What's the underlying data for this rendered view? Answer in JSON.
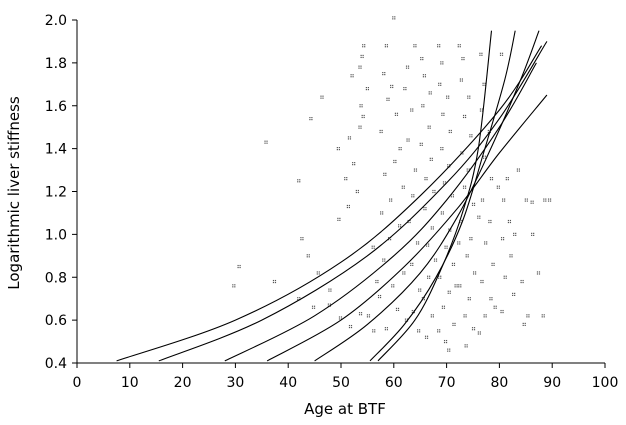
{
  "chart_data": {
    "type": "scatter",
    "xlabel": "Age at BTF",
    "ylabel": "Logarithmic liver stiffness",
    "xlim": [
      0,
      100
    ],
    "ylim": [
      0.4,
      2.0
    ],
    "xticks": [
      "0",
      "10",
      "20",
      "30",
      "40",
      "50",
      "60",
      "70",
      "80",
      "90",
      "100"
    ],
    "yticks": [
      "0.4",
      "0.6",
      "0.8",
      "1.0",
      "1.2",
      "1.4",
      "1.6",
      "1.8",
      "2.0"
    ],
    "grid": false,
    "legend": "none",
    "curves": [
      {
        "points": [
          [
            7.5,
            0.41
          ],
          [
            30,
            0.6
          ],
          [
            50,
            0.87
          ],
          [
            65,
            1.18
          ],
          [
            80,
            1.58
          ],
          [
            88,
            1.88
          ]
        ]
      },
      {
        "points": [
          [
            15.5,
            0.41
          ],
          [
            35,
            0.6
          ],
          [
            55,
            0.9
          ],
          [
            70,
            1.24
          ],
          [
            80,
            1.54
          ],
          [
            89,
            1.9
          ]
        ]
      },
      {
        "points": [
          [
            28,
            0.41
          ],
          [
            45,
            0.62
          ],
          [
            60,
            0.9
          ],
          [
            70,
            1.16
          ],
          [
            80,
            1.5
          ],
          [
            87,
            1.8
          ]
        ]
      },
      {
        "points": [
          [
            36,
            0.41
          ],
          [
            50,
            0.6
          ],
          [
            62,
            0.85
          ],
          [
            72,
            1.12
          ],
          [
            80,
            1.38
          ],
          [
            89,
            1.65
          ]
        ]
      },
      {
        "points": [
          [
            45,
            0.41
          ],
          [
            55,
            0.58
          ],
          [
            65,
            0.82
          ],
          [
            72,
            1.08
          ],
          [
            78,
            1.38
          ],
          [
            84,
            1.72
          ],
          [
            87.5,
            1.95
          ]
        ]
      },
      {
        "points": [
          [
            55.5,
            0.41
          ],
          [
            62,
            0.58
          ],
          [
            68,
            0.8
          ],
          [
            73,
            1.06
          ],
          [
            77,
            1.38
          ],
          [
            81,
            1.72
          ],
          [
            83,
            1.95
          ]
        ]
      },
      {
        "points": [
          [
            57,
            0.41
          ],
          [
            64,
            0.6
          ],
          [
            69,
            0.84
          ],
          [
            73,
            1.1
          ],
          [
            76,
            1.4
          ],
          [
            78.5,
            1.95
          ]
        ]
      }
    ],
    "points": [
      [
        60,
        2.01
      ],
      [
        30.7,
        0.85
      ],
      [
        29.7,
        0.76
      ],
      [
        35.8,
        1.43
      ],
      [
        42,
        1.25
      ],
      [
        37.4,
        0.78
      ],
      [
        54.3,
        1.88
      ],
      [
        54,
        1.83
      ],
      [
        53.6,
        1.78
      ],
      [
        52.1,
        1.74
      ],
      [
        55,
        1.68
      ],
      [
        53.8,
        1.6
      ],
      [
        54.2,
        1.55
      ],
      [
        53.6,
        1.5
      ],
      [
        51.6,
        1.45
      ],
      [
        49.5,
        1.4
      ],
      [
        52.4,
        1.33
      ],
      [
        50.9,
        1.26
      ],
      [
        53.1,
        1.2
      ],
      [
        51.4,
        1.13
      ],
      [
        49.6,
        1.07
      ],
      [
        44.3,
        1.54
      ],
      [
        46.4,
        1.64
      ],
      [
        42.6,
        0.98
      ],
      [
        43.8,
        0.9
      ],
      [
        45.7,
        0.82
      ],
      [
        47.9,
        0.74
      ],
      [
        42,
        0.7
      ],
      [
        44.8,
        0.66
      ],
      [
        49.9,
        0.61
      ],
      [
        51.8,
        0.57
      ],
      [
        56.2,
        0.55
      ],
      [
        53.7,
        0.63
      ],
      [
        47.8,
        0.67
      ],
      [
        58.6,
        1.88
      ],
      [
        58.1,
        1.75
      ],
      [
        59.6,
        1.69
      ],
      [
        58.9,
        1.63
      ],
      [
        60.5,
        1.56
      ],
      [
        57.6,
        1.48
      ],
      [
        61.2,
        1.4
      ],
      [
        60.2,
        1.34
      ],
      [
        58.3,
        1.28
      ],
      [
        61.8,
        1.22
      ],
      [
        59.4,
        1.16
      ],
      [
        57.7,
        1.1
      ],
      [
        61.1,
        1.04
      ],
      [
        59.2,
        0.98
      ],
      [
        56.1,
        0.94
      ],
      [
        58.1,
        0.88
      ],
      [
        61.9,
        0.82
      ],
      [
        59.8,
        0.76
      ],
      [
        57.3,
        0.71
      ],
      [
        60.7,
        0.65
      ],
      [
        62.4,
        0.6
      ],
      [
        58.6,
        0.56
      ],
      [
        55.2,
        0.62
      ],
      [
        56.8,
        0.78
      ],
      [
        62.6,
        1.78
      ],
      [
        62.1,
        1.68
      ],
      [
        63.4,
        1.58
      ],
      [
        62.7,
        1.44
      ],
      [
        64.1,
        1.3
      ],
      [
        63.6,
        1.18
      ],
      [
        62.9,
        1.06
      ],
      [
        64.5,
        0.96
      ],
      [
        63.4,
        0.86
      ],
      [
        64.9,
        0.74
      ],
      [
        63.7,
        0.64
      ],
      [
        64.7,
        0.55
      ],
      [
        64,
        1.88
      ],
      [
        65.3,
        1.82
      ],
      [
        65.8,
        1.74
      ],
      [
        66.9,
        1.66
      ],
      [
        65.5,
        1.6
      ],
      [
        66.7,
        1.5
      ],
      [
        65.2,
        1.42
      ],
      [
        67.1,
        1.35
      ],
      [
        66.1,
        1.26
      ],
      [
        67.6,
        1.2
      ],
      [
        65.9,
        1.12
      ],
      [
        67.3,
        1.03
      ],
      [
        66.4,
        0.95
      ],
      [
        67.9,
        0.88
      ],
      [
        66.6,
        0.8
      ],
      [
        65.6,
        0.7
      ],
      [
        67.3,
        0.62
      ],
      [
        66.2,
        0.52
      ],
      [
        68.5,
        1.88
      ],
      [
        69.1,
        1.8
      ],
      [
        68.7,
        1.7
      ],
      [
        70.2,
        1.64
      ],
      [
        69.3,
        1.56
      ],
      [
        70.7,
        1.48
      ],
      [
        69.1,
        1.4
      ],
      [
        70.4,
        1.32
      ],
      [
        69.6,
        1.24
      ],
      [
        71.1,
        1.18
      ],
      [
        69.2,
        1.1
      ],
      [
        70.6,
        1.02
      ],
      [
        69.9,
        0.94
      ],
      [
        71.3,
        0.86
      ],
      [
        68.7,
        0.8
      ],
      [
        70.5,
        0.73
      ],
      [
        69.4,
        0.66
      ],
      [
        71.4,
        0.58
      ],
      [
        69.8,
        0.5
      ],
      [
        70.4,
        0.46
      ],
      [
        68.5,
        0.55
      ],
      [
        71.8,
        0.76
      ],
      [
        72.4,
        1.88
      ],
      [
        73.1,
        1.82
      ],
      [
        72.8,
        1.72
      ],
      [
        74.2,
        1.64
      ],
      [
        73.4,
        1.55
      ],
      [
        74.6,
        1.46
      ],
      [
        72.9,
        1.38
      ],
      [
        74.1,
        1.3
      ],
      [
        73.4,
        1.22
      ],
      [
        75.1,
        1.14
      ],
      [
        72.7,
        1.06
      ],
      [
        74.6,
        0.98
      ],
      [
        73.9,
        0.9
      ],
      [
        75.3,
        0.82
      ],
      [
        72.5,
        0.76
      ],
      [
        74.3,
        0.7
      ],
      [
        73.5,
        0.62
      ],
      [
        75.1,
        0.56
      ],
      [
        73.7,
        0.48
      ],
      [
        72.3,
        0.96
      ],
      [
        76.1,
        1.08
      ],
      [
        76.5,
        1.84
      ],
      [
        77.1,
        1.7
      ],
      [
        76.6,
        1.58
      ],
      [
        78.1,
        1.48
      ],
      [
        77.2,
        1.36
      ],
      [
        78.5,
        1.26
      ],
      [
        76.8,
        1.16
      ],
      [
        78.2,
        1.06
      ],
      [
        77.4,
        0.96
      ],
      [
        78.8,
        0.86
      ],
      [
        76.7,
        0.78
      ],
      [
        78.4,
        0.7
      ],
      [
        77.3,
        0.62
      ],
      [
        76.2,
        0.54
      ],
      [
        79.2,
        0.66
      ],
      [
        80.4,
        1.84
      ],
      [
        81.5,
        1.26
      ],
      [
        80.8,
        1.16
      ],
      [
        81.9,
        1.06
      ],
      [
        80.6,
        0.98
      ],
      [
        82.2,
        0.9
      ],
      [
        81.1,
        0.8
      ],
      [
        82.7,
        0.72
      ],
      [
        80.5,
        0.64
      ],
      [
        79.8,
        1.22
      ],
      [
        82.9,
        1.0
      ],
      [
        85.1,
        1.16
      ],
      [
        86.2,
        1.15
      ],
      [
        85.4,
        0.62
      ],
      [
        88.3,
        0.62
      ],
      [
        88.6,
        1.16
      ],
      [
        87.4,
        0.82
      ],
      [
        89.5,
        1.16
      ],
      [
        84.3,
        0.78
      ],
      [
        84.7,
        0.58
      ],
      [
        83.6,
        1.3
      ],
      [
        86.3,
        1.0
      ]
    ]
  }
}
